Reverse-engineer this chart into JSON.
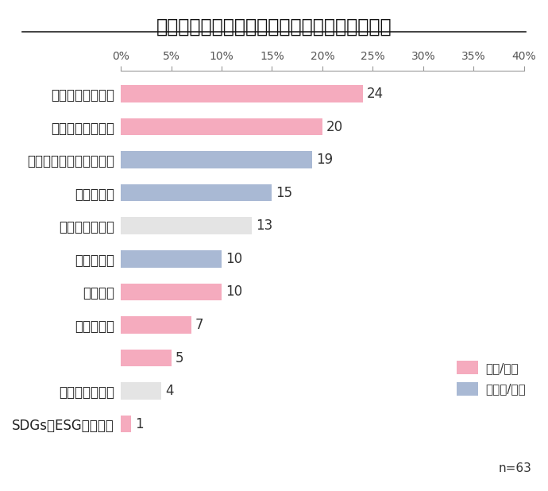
{
  "title": "オフィス移転検討・実施の理由（複数選択可）",
  "categories": [
    "人員増・事業拡大",
    "オフィス環境改善",
    "業務効率化・生産性向上",
    "集約・統合",
    "建替えや再開発",
    "コスト削減",
    "立地改善",
    "新拠点設立",
    "",
    "契約更新の難航",
    "SDGs・ESG対応強化"
  ],
  "values": [
    24,
    20,
    19,
    15,
    13,
    10,
    10,
    7,
    5,
    4,
    1
  ],
  "colors": [
    "#f5abbe",
    "#f5abbe",
    "#a9b9d4",
    "#a9b9d4",
    "#e4e4e4",
    "#a9b9d4",
    "#f5abbe",
    "#f5abbe",
    "#f5abbe",
    "#e4e4e4",
    "#f5abbe"
  ],
  "xlim": [
    0,
    40
  ],
  "xticks": [
    0,
    5,
    10,
    15,
    20,
    25,
    30,
    35,
    40
  ],
  "xtick_labels": [
    "0%",
    "5%",
    "10%",
    "15%",
    "20%",
    "25%",
    "30%",
    "35%",
    "40%"
  ],
  "n_label": "n=63",
  "legend_items": [
    {
      "label": "改善/強化",
      "color": "#f5abbe"
    },
    {
      "label": "効率化/削減",
      "color": "#a9b9d4"
    }
  ],
  "title_fontsize": 17,
  "label_fontsize": 12,
  "value_fontsize": 12,
  "xtick_fontsize": 10,
  "background_color": "#ffffff",
  "bar_height": 0.52
}
